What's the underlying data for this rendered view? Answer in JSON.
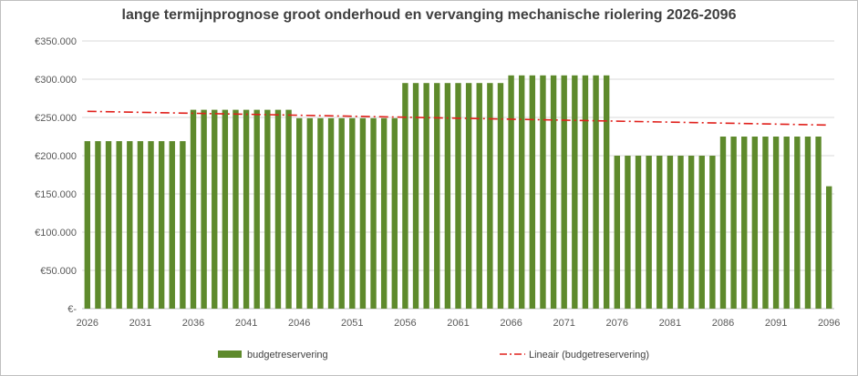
{
  "chart_data": {
    "type": "bar",
    "title": "lange termijnprognose groot onderhoud en vervanging mechanische riolering 2026-2096",
    "ylim": [
      0,
      350000
    ],
    "yticks": [
      0,
      50000,
      100000,
      150000,
      200000,
      250000,
      300000,
      350000
    ],
    "ytick_labels": [
      "€-",
      "€50.000",
      "€100.000",
      "€150.000",
      "€200.000",
      "€250.000",
      "€300.000",
      "€350.000"
    ],
    "xtick_labels": [
      "2026",
      "2031",
      "2036",
      "2041",
      "2046",
      "2051",
      "2056",
      "2061",
      "2066",
      "2071",
      "2076",
      "2081",
      "2086",
      "2091",
      "2096"
    ],
    "grid": true,
    "legend_position": "bottom",
    "series": [
      {
        "name": "budgetreservering",
        "color": "#5e8a2c",
        "segments": [
          {
            "from": 2026,
            "to": 2035,
            "value": 219000
          },
          {
            "from": 2036,
            "to": 2045,
            "value": 260000
          },
          {
            "from": 2046,
            "to": 2055,
            "value": 249000
          },
          {
            "from": 2056,
            "to": 2065,
            "value": 295000
          },
          {
            "from": 2066,
            "to": 2075,
            "value": 305000
          },
          {
            "from": 2076,
            "to": 2085,
            "value": 200000
          },
          {
            "from": 2086,
            "to": 2095,
            "value": 225000
          },
          {
            "from": 2096,
            "to": 2096,
            "value": 160000
          }
        ]
      }
    ],
    "trendline": {
      "name": "Lineair (budgetreservering)",
      "color": "#e0201b",
      "start": {
        "x": 2026,
        "y": 258000
      },
      "end": {
        "x": 2096,
        "y": 240000
      }
    }
  }
}
